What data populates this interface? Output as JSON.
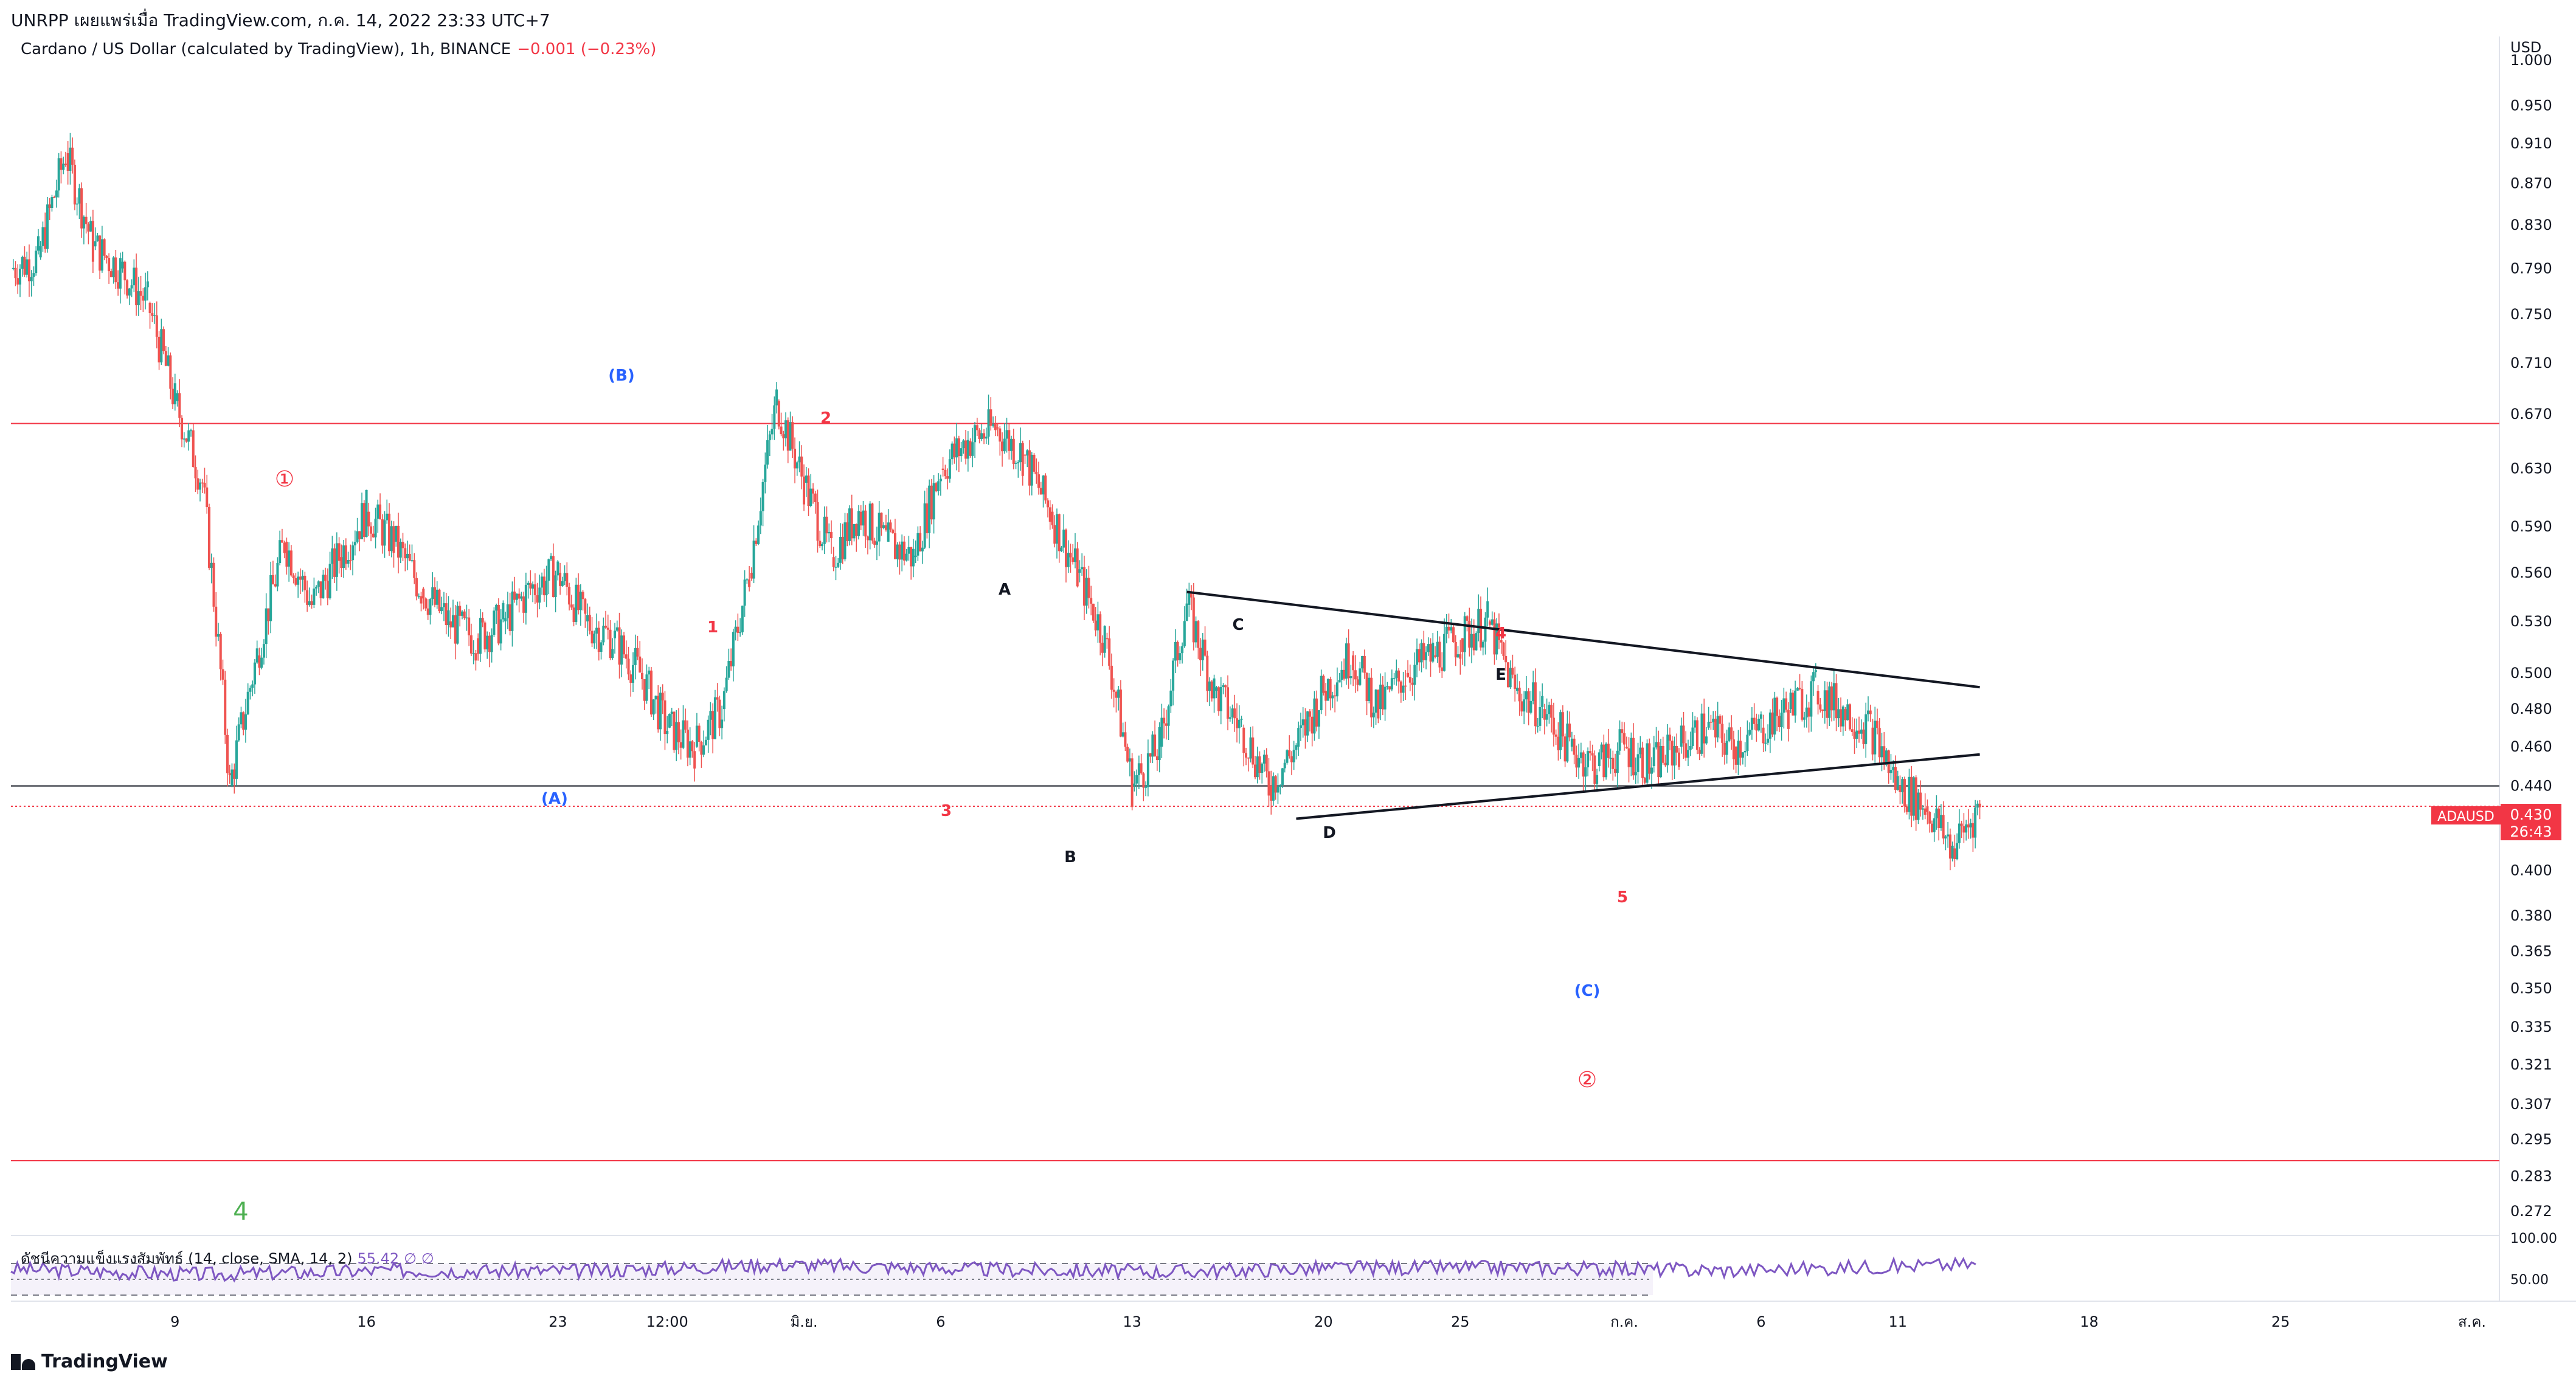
{
  "header": {
    "published_line": "UNRPP เผยแพร่เมื่อ TradingView.com, ก.ค. 14, 2022 23:33 UTC+7",
    "symbol_desc": "Cardano / US Dollar (calculated by TradingView), 1h, BINANCE",
    "change": "−0.001 (−0.23%)"
  },
  "price_scale": {
    "currency": "USD",
    "ticks": [
      "1.000",
      "0.950",
      "0.910",
      "0.870",
      "0.830",
      "0.790",
      "0.750",
      "0.710",
      "0.670",
      "0.630",
      "0.590",
      "0.560",
      "0.530",
      "0.500",
      "0.480",
      "0.460",
      "0.440",
      "0.400",
      "0.380",
      "0.365",
      "0.350",
      "0.335",
      "0.321",
      "0.307",
      "0.295",
      "0.283",
      "0.272"
    ],
    "symbol_tag": "ADAUSD",
    "last_price": "0.430",
    "countdown": "26:43"
  },
  "time_axis": {
    "ticks": [
      "9",
      "16",
      "23",
      "12:00",
      "มิ.ย.",
      "6",
      "13",
      "20",
      "25",
      "ก.ค.",
      "6",
      "11",
      "18",
      "25",
      "ส.ค."
    ]
  },
  "rsi": {
    "legend": "ดัชนีความแข็งแรงสัมพัทธ์ (14, close, SMA, 14, 2)",
    "value": "55.42",
    "symbols": "∅ ∅",
    "ticks": [
      "100.00",
      "50.00"
    ]
  },
  "wave_labels": {
    "B_paren": "(B)",
    "A_paren": "(A)",
    "C_paren": "(C)",
    "circle1": "①",
    "circle2": "②",
    "w1": "1",
    "w2": "2",
    "w3": "3",
    "w4": "4",
    "w5": "5",
    "tA": "A",
    "tB": "B",
    "tC": "C",
    "tD": "D",
    "tE": "E",
    "green4": "4"
  },
  "brand": "TradingView",
  "chart_data": {
    "type": "line",
    "symbol": "ADAUSD",
    "interval": "1h",
    "y_scale": "log",
    "ylim": [
      0.265,
      1.02
    ],
    "x_range": [
      "May 3 2022",
      "Aug 2 2022"
    ],
    "horizontal_lines": [
      {
        "price": 0.663,
        "color": "#f23645"
      },
      {
        "price": 0.44,
        "color": "#131722"
      },
      {
        "price": 0.43,
        "color": "#f23645",
        "style": "dotted"
      },
      {
        "price": 0.288,
        "color": "#f23645"
      }
    ],
    "series": [
      {
        "kind": "price",
        "x": [
          "May 3",
          "May 4",
          "May 5",
          "May 6",
          "May 7",
          "May 8",
          "May 9",
          "May 10",
          "May 11",
          "May 12",
          "May 13",
          "May 14",
          "May 15",
          "May 16",
          "May 17",
          "May 18",
          "May 19",
          "May 20",
          "May 21",
          "May 22",
          "May 23",
          "May 24",
          "May 25",
          "May 26",
          "May 27",
          "May 28",
          "May 29",
          "May 30",
          "May 31",
          "Jun 1",
          "Jun 2",
          "Jun 3",
          "Jun 4",
          "Jun 5",
          "Jun 6",
          "Jun 7",
          "Jun 8",
          "Jun 9",
          "Jun 10",
          "Jun 11",
          "Jun 12",
          "Jun 13",
          "Jun 14",
          "Jun 15",
          "Jun 16",
          "Jun 17",
          "Jun 18",
          "Jun 19",
          "Jun 20",
          "Jun 21",
          "Jun 22",
          "Jun 23",
          "Jun 24",
          "Jun 25",
          "Jun 26",
          "Jun 27",
          "Jun 28",
          "Jun 29",
          "Jun 30",
          "Jul 1",
          "Jul 2",
          "Jul 3",
          "Jul 4",
          "Jul 5",
          "Jul 6",
          "Jul 7",
          "Jul 8",
          "Jul 9",
          "Jul 10",
          "Jul 11",
          "Jul 12",
          "Jul 13",
          "Jul 14"
        ],
        "values": [
          0.79,
          0.8,
          0.9,
          0.81,
          0.79,
          0.76,
          0.68,
          0.62,
          0.44,
          0.51,
          0.58,
          0.54,
          0.57,
          0.6,
          0.58,
          0.55,
          0.53,
          0.52,
          0.53,
          0.55,
          0.56,
          0.53,
          0.52,
          0.5,
          0.47,
          0.46,
          0.48,
          0.56,
          0.68,
          0.62,
          0.57,
          0.6,
          0.58,
          0.57,
          0.63,
          0.65,
          0.66,
          0.64,
          0.6,
          0.56,
          0.52,
          0.44,
          0.46,
          0.54,
          0.49,
          0.47,
          0.44,
          0.46,
          0.49,
          0.51,
          0.48,
          0.5,
          0.51,
          0.52,
          0.53,
          0.49,
          0.48,
          0.46,
          0.45,
          0.46,
          0.45,
          0.46,
          0.47,
          0.46,
          0.47,
          0.48,
          0.49,
          0.48,
          0.47,
          0.44,
          0.43,
          0.41,
          0.43
        ]
      }
    ],
    "triangle_lines": [
      {
        "from": [
          "Jun 15",
          0.548
        ],
        "to": [
          "Jul 14",
          0.492
        ]
      },
      {
        "from": [
          "Jun 19",
          0.424
        ],
        "to": [
          "Jul 14",
          0.456
        ]
      }
    ],
    "rsi_series": {
      "x": [
        "May 3",
        "May 10",
        "May 17",
        "May 24",
        "May 31",
        "Jun 7",
        "Jun 14",
        "Jun 21",
        "Jun 28",
        "Jul 5",
        "Jul 14"
      ],
      "values": [
        48,
        40,
        46,
        45,
        55,
        48,
        44,
        50,
        50,
        46,
        55.42
      ]
    }
  }
}
